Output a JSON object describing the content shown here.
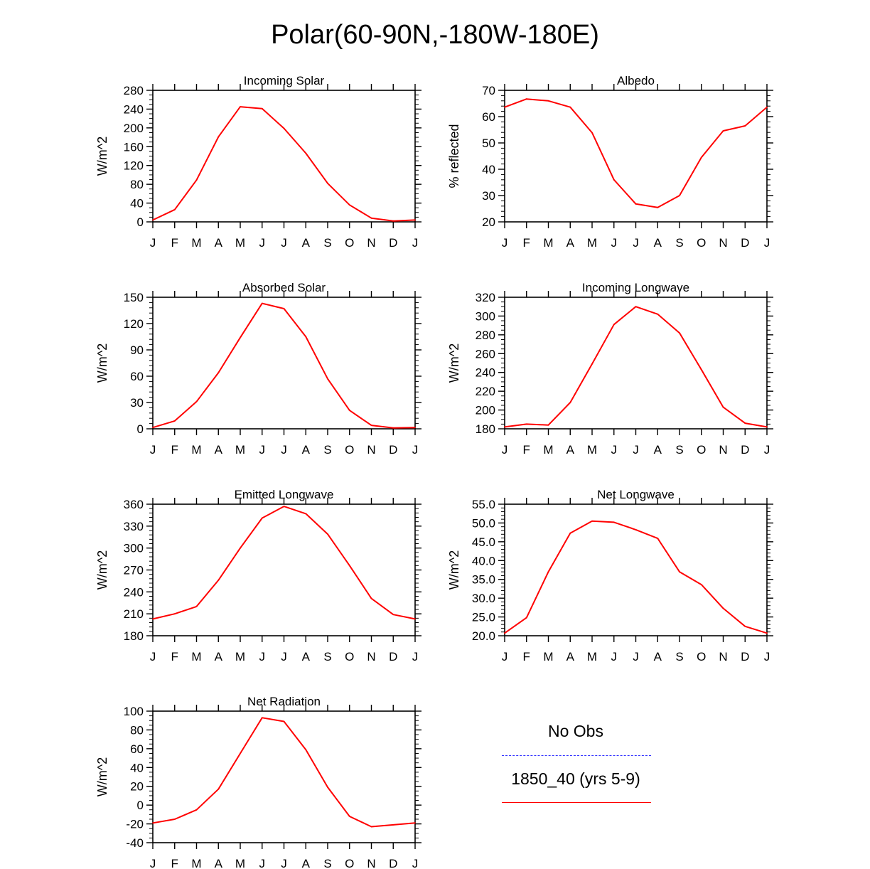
{
  "title": "Polar(60-90N,-180W-180E)",
  "colors": {
    "model": "#ff0000",
    "obs": "#3333ff",
    "axis": "#000000"
  },
  "legend": {
    "obs_label": "No Obs",
    "model_label": "1850_40 (yrs 5-9)"
  },
  "chart_data": [
    {
      "type": "line",
      "title": "Incoming Solar",
      "ylabel": "W/m^2",
      "ylim": [
        0,
        280
      ],
      "yticks": [
        "0",
        "40",
        "80",
        "120",
        "160",
        "200",
        "240",
        "280"
      ],
      "minor_step": 10,
      "x": [
        "J",
        "F",
        "M",
        "A",
        "M",
        "J",
        "J",
        "A",
        "S",
        "O",
        "N",
        "D",
        "J"
      ],
      "series": [
        {
          "name": "1850_40 (yrs 5-9)",
          "values": [
            4,
            26,
            89,
            181,
            245,
            241,
            199,
            146,
            82,
            36,
            8,
            2,
            4
          ]
        }
      ]
    },
    {
      "type": "line",
      "title": "Albedo",
      "ylabel": "% reflected",
      "ylim": [
        20,
        70
      ],
      "yticks": [
        "20",
        "30",
        "40",
        "50",
        "60",
        "70"
      ],
      "minor_step": 2,
      "x": [
        "J",
        "F",
        "M",
        "A",
        "M",
        "J",
        "J",
        "A",
        "S",
        "O",
        "N",
        "D",
        "J"
      ],
      "series": [
        {
          "name": "1850_40 (yrs 5-9)",
          "values": [
            63.6,
            66.7,
            66,
            63.6,
            53.9,
            36,
            26.8,
            25.5,
            30,
            44.5,
            54.6,
            56.5,
            63.6
          ]
        }
      ]
    },
    {
      "type": "line",
      "title": "Absorbed Solar",
      "ylabel": "W/m^2",
      "ylim": [
        0,
        150
      ],
      "yticks": [
        "0",
        "30",
        "60",
        "90",
        "120",
        "150"
      ],
      "minor_step": 6,
      "x": [
        "J",
        "F",
        "M",
        "A",
        "M",
        "J",
        "J",
        "A",
        "S",
        "O",
        "N",
        "D",
        "J"
      ],
      "series": [
        {
          "name": "1850_40 (yrs 5-9)",
          "values": [
            1.5,
            9,
            31,
            64,
            104,
            143,
            137,
            105,
            57,
            21,
            4,
            1,
            1.5
          ]
        }
      ]
    },
    {
      "type": "line",
      "title": "Incoming Longwave",
      "ylabel": "W/m^2",
      "ylim": [
        180,
        320
      ],
      "yticks": [
        "180",
        "200",
        "220",
        "240",
        "260",
        "280",
        "300",
        "320"
      ],
      "minor_step": 5,
      "x": [
        "J",
        "F",
        "M",
        "A",
        "M",
        "J",
        "J",
        "A",
        "S",
        "O",
        "N",
        "D",
        "J"
      ],
      "series": [
        {
          "name": "1850_40 (yrs 5-9)",
          "values": [
            182,
            185,
            184,
            208,
            249,
            291,
            310,
            302,
            282,
            243,
            203,
            186,
            182
          ]
        }
      ]
    },
    {
      "type": "line",
      "title": "Emitted Longwave",
      "ylabel": "W/m^2",
      "ylim": [
        180,
        360
      ],
      "yticks": [
        "180",
        "210",
        "240",
        "270",
        "300",
        "330",
        "360"
      ],
      "minor_step": 6,
      "x": [
        "J",
        "F",
        "M",
        "A",
        "M",
        "J",
        "J",
        "A",
        "S",
        "O",
        "N",
        "D",
        "J"
      ],
      "series": [
        {
          "name": "1850_40 (yrs 5-9)",
          "values": [
            203,
            210,
            220,
            256,
            300,
            341,
            357,
            347,
            319,
            276,
            231,
            209,
            203
          ]
        }
      ]
    },
    {
      "type": "line",
      "title": "Net Longwave",
      "ylabel": "W/m^2",
      "ylim": [
        20,
        55
      ],
      "yticks": [
        "20.0",
        "25.0",
        "30.0",
        "35.0",
        "40.0",
        "45.0",
        "50.0",
        "55.0"
      ],
      "minor_step": 1,
      "x": [
        "J",
        "F",
        "M",
        "A",
        "M",
        "J",
        "J",
        "A",
        "S",
        "O",
        "N",
        "D",
        "J"
      ],
      "series": [
        {
          "name": "1850_40 (yrs 5-9)",
          "values": [
            20.7,
            24.8,
            37,
            47.3,
            50.5,
            50.2,
            48.2,
            45.9,
            37,
            33.6,
            27.3,
            22.5,
            20.7
          ]
        }
      ]
    },
    {
      "type": "line",
      "title": "Net Radiation",
      "ylabel": "W/m^2",
      "ylim": [
        -40,
        100
      ],
      "yticks": [
        "-40",
        "-20",
        "0",
        "20",
        "40",
        "60",
        "80",
        "100"
      ],
      "minor_step": 5,
      "x": [
        "J",
        "F",
        "M",
        "A",
        "M",
        "J",
        "J",
        "A",
        "S",
        "O",
        "N",
        "D",
        "J"
      ],
      "series": [
        {
          "name": "1850_40 (yrs 5-9)",
          "values": [
            -19,
            -15,
            -5,
            17,
            55,
            93,
            89,
            59,
            19,
            -12,
            -23,
            -21,
            -19
          ]
        }
      ]
    }
  ]
}
